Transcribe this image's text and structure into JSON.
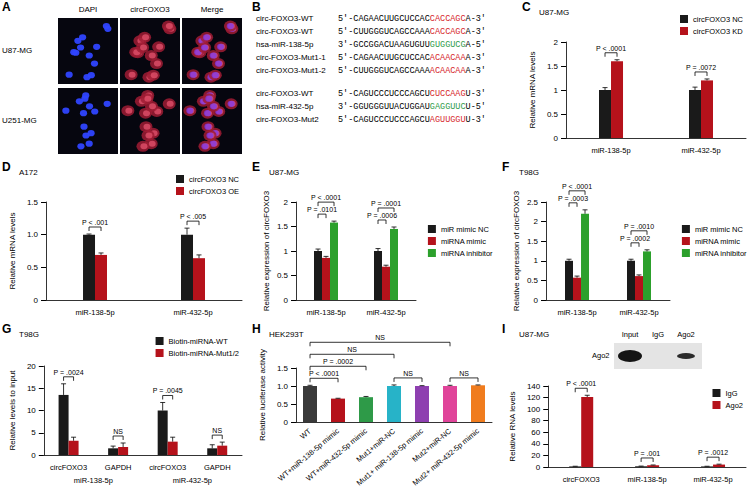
{
  "panel_a": {
    "panel": "A",
    "columns": [
      "DAPI",
      "circFOXO3",
      "Merge"
    ],
    "rows": [
      "U87-MG",
      "U251-MG"
    ]
  },
  "panel_b": {
    "panel": "B",
    "blocks": [
      [
        {
          "name": "circ-FOXO3-WT",
          "parts": [
            {
              "text": "5'-CAGAACUUGCUCCAC"
            },
            {
              "text": "CACCAGC",
              "color": "#d6262c"
            },
            {
              "text": "A-3'"
            }
          ]
        },
        {
          "name": "circ-FOXO3-WT",
          "parts": [
            {
              "text": "5'-CUUGGGUCAGCCAAA"
            },
            {
              "text": "CACCAGC",
              "color": "#d6262c"
            },
            {
              "text": "A-3'"
            }
          ]
        },
        {
          "name": "hsa-miR-138-5p",
          "parts": [
            {
              "text": "3'-GCCGGACUAAGUGUU"
            },
            {
              "text": "GUGGUCG",
              "color": "#2e9a48"
            },
            {
              "text": "A-5'"
            }
          ]
        },
        {
          "name": "circ-FOXO3-Mut1-1",
          "parts": [
            {
              "text": "5'-CAGAACUUGCUCCAC"
            },
            {
              "text": "ACAACAA",
              "color": "#d6262c"
            },
            {
              "text": "A-3'"
            }
          ]
        },
        {
          "name": "circ-FOXO3-Mut1-2",
          "parts": [
            {
              "text": "5'-CUUGGGUCAGCCAAA"
            },
            {
              "text": "ACAACAA",
              "color": "#d6262c"
            },
            {
              "text": "A-3'"
            }
          ]
        }
      ],
      [
        {
          "name": "circ-FOXO3-WT",
          "parts": [
            {
              "text": "5'-CAGUCCCUCCCAGCU"
            },
            {
              "text": "CUCCAAG",
              "color": "#d6262c"
            },
            {
              "text": "U-3'"
            }
          ]
        },
        {
          "name": "hsa-miR-432-5p",
          "parts": [
            {
              "text": "3'-GGUGGGUUACUGGAU"
            },
            {
              "text": "GAGGUUC",
              "color": "#2e9a48"
            },
            {
              "text": "U-5'"
            }
          ]
        },
        {
          "name": "circ-FOXO3-Mut2",
          "parts": [
            {
              "text": "5'-CAGUCCCUCCCAGCU"
            },
            {
              "text": "AGUUGGU",
              "color": "#d6262c"
            },
            {
              "text": "U-3'"
            }
          ]
        }
      ]
    ]
  },
  "panel_i_blot": {
    "lanes": [
      "Input",
      "IgG",
      "Ago2"
    ],
    "band": "Ago2"
  },
  "chart_data": [
    {
      "panel": "C",
      "type": "bar",
      "title": "U87-MG",
      "y_label": "Relative mRNA levels",
      "categories": [
        "miR-138-5p",
        "miR-432-5p"
      ],
      "series": [
        {
          "name": "circFOXO3 NC",
          "color": "#1a1a1a",
          "values": [
            1.0,
            1.0
          ],
          "errors": [
            0.05,
            0.06
          ]
        },
        {
          "name": "circFOXO3 KD",
          "color": "#b5121b",
          "values": [
            1.6,
            1.2
          ],
          "errors": [
            0.03,
            0.03
          ]
        }
      ],
      "ylim": [
        0,
        2
      ],
      "yticks": [
        0,
        0.5,
        1,
        1.5,
        2
      ],
      "grid": false,
      "legend": "upper right",
      "significance": [
        {
          "label": "P < .0001",
          "between": [
            [
              0,
              0
            ],
            [
              0,
              1
            ]
          ]
        },
        {
          "label": "P = .0072",
          "between": [
            [
              1,
              0
            ],
            [
              1,
              1
            ]
          ]
        }
      ]
    },
    {
      "panel": "D",
      "type": "bar",
      "title": "A172",
      "y_label": "Relative mRNA levels",
      "categories": [
        "miR-138-5p",
        "miR-432-5p"
      ],
      "series": [
        {
          "name": "circFOXO3 NC",
          "color": "#1a1a1a",
          "values": [
            1.0,
            1.0
          ],
          "errors": [
            0.01,
            0.1
          ]
        },
        {
          "name": "circFOXO3 OE",
          "color": "#b5121b",
          "values": [
            0.69,
            0.64
          ],
          "errors": [
            0.03,
            0.05
          ]
        }
      ],
      "ylim": [
        0,
        1.5
      ],
      "yticks": [
        0,
        0.5,
        {
          "value": 1,
          "label": "1.0"
        },
        1.5
      ],
      "grid": false,
      "legend": "upper right",
      "significance": [
        {
          "label": "P < .001",
          "between": [
            [
              0,
              0
            ],
            [
              0,
              1
            ]
          ]
        },
        {
          "label": "P < .005",
          "between": [
            [
              1,
              0
            ],
            [
              1,
              1
            ]
          ]
        }
      ]
    },
    {
      "panel": "E",
      "type": "bar",
      "title": "U87-MG",
      "y_label": "Relative expression of circFOXO3",
      "categories": [
        "miR-138-5p",
        "miR-432-5p"
      ],
      "series": [
        {
          "name": "miR mimic NC",
          "color": "#1a1a1a",
          "values": [
            1.0,
            1.0
          ],
          "errors": [
            0.04,
            0.05
          ]
        },
        {
          "name": "miRNA mimic",
          "color": "#b5121b",
          "values": [
            0.86,
            0.68
          ],
          "errors": [
            0.03,
            0.03
          ]
        },
        {
          "name": "miRNA inhibitor",
          "color": "#2ca02c",
          "values": [
            1.58,
            1.45
          ],
          "errors": [
            0.03,
            0.04
          ]
        }
      ],
      "ylim": [
        0,
        2
      ],
      "yticks": [
        0,
        0.5,
        1,
        1.5,
        2
      ],
      "grid": false,
      "legend": "right",
      "significance": [
        {
          "label": "P = .0101",
          "between": [
            [
              0,
              0
            ],
            [
              0,
              1
            ]
          ]
        },
        {
          "label": "P < .0001",
          "between": [
            [
              0,
              0
            ],
            [
              0,
              2
            ]
          ]
        },
        {
          "label": "P = .0006",
          "between": [
            [
              1,
              0
            ],
            [
              1,
              1
            ]
          ]
        },
        {
          "label": "P = .0001",
          "between": [
            [
              1,
              0
            ],
            [
              1,
              2
            ]
          ]
        }
      ]
    },
    {
      "panel": "F",
      "type": "bar",
      "title": "T98G",
      "y_label": "Relative expression of circFOXO3",
      "categories": [
        "miR-138-5p",
        "miR-432-5p"
      ],
      "series": [
        {
          "name": "miR mimic NC",
          "color": "#1a1a1a",
          "values": [
            1.0,
            1.0
          ],
          "errors": [
            0.04,
            0.04
          ]
        },
        {
          "name": "miRNA mimic",
          "color": "#b5121b",
          "values": [
            0.57,
            0.61
          ],
          "errors": [
            0.04,
            0.03
          ]
        },
        {
          "name": "miRNA inhibitor",
          "color": "#2ca02c",
          "values": [
            2.2,
            1.24
          ],
          "errors": [
            0.1,
            0.04
          ]
        }
      ],
      "ylim": [
        0,
        2.5
      ],
      "yticks": [
        0,
        0.5,
        1,
        1.5,
        2,
        2.5
      ],
      "grid": false,
      "legend": "right",
      "significance": [
        {
          "label": "P = .0003",
          "between": [
            [
              0,
              0
            ],
            [
              0,
              1
            ]
          ]
        },
        {
          "label": "P < .0001",
          "between": [
            [
              0,
              0
            ],
            [
              0,
              2
            ]
          ]
        },
        {
          "label": "P = .0002",
          "between": [
            [
              1,
              0
            ],
            [
              1,
              1
            ]
          ]
        },
        {
          "label": "P = .0010",
          "between": [
            [
              1,
              0
            ],
            [
              1,
              2
            ]
          ]
        }
      ]
    },
    {
      "panel": "G",
      "type": "bar",
      "title": "T98G",
      "y_label": "Relative levels to input",
      "categories": [
        "circFOXO3",
        "GAPDH",
        "circFOXO3",
        "GAPDH"
      ],
      "category_groups": [
        "miR-138-5p",
        "miR-432-5p"
      ],
      "series": [
        {
          "name": "Biotin-miRNA-WT",
          "color": "#1a1a1a",
          "values": [
            13.5,
            1.5,
            10,
            1.5
          ],
          "errors": [
            2.5,
            0.5,
            1.8,
            0.8
          ]
        },
        {
          "name": "Biotin-miRNA-Mut1/2",
          "color": "#b5121b",
          "values": [
            3.2,
            1.8,
            3.0,
            2.1
          ],
          "errors": [
            0.8,
            0.9,
            1.0,
            0.8
          ]
        }
      ],
      "ylim": [
        0,
        20
      ],
      "yticks": [
        0,
        5,
        10,
        15,
        20
      ],
      "grid": false,
      "legend": "upper right",
      "significance": [
        {
          "label": "P = .0024",
          "between": [
            [
              0,
              0
            ],
            [
              0,
              1
            ]
          ]
        },
        {
          "label": "NS",
          "between": [
            [
              1,
              0
            ],
            [
              1,
              1
            ]
          ]
        },
        {
          "label": "P = .0045",
          "between": [
            [
              2,
              0
            ],
            [
              2,
              1
            ]
          ]
        },
        {
          "label": "NS",
          "between": [
            [
              3,
              0
            ],
            [
              3,
              1
            ]
          ]
        }
      ]
    },
    {
      "panel": "H",
      "type": "bar",
      "title": "HEK293T",
      "y_label": "Relative luciferase activity",
      "categories": [
        "WT",
        "WT+miR-138-5p mimic",
        "WT+miR-432-5p mimic",
        "Mut1+miR-NC",
        "Mut1+ miR-138-5p mimic",
        "Mut2+miR-NC",
        "Mut2+ miR-432-5p mimic"
      ],
      "series": [
        {
          "values": [
            1.0,
            0.65,
            0.69,
            1.0,
            1.0,
            1.0,
            1.02
          ],
          "errors": [
            0.02,
            0.01,
            0.02,
            0.03,
            0.01,
            0.02,
            0.01
          ],
          "colors": [
            "#3a3a3a",
            "#b5121b",
            "#2e9a48",
            "#27b3c8",
            "#8e3fb0",
            "#e0449a",
            "#f07c1e"
          ]
        }
      ],
      "ylim": [
        0,
        1.5
      ],
      "yticks": [
        0,
        0.5,
        {
          "value": 1,
          "label": "1.0"
        },
        1.5
      ],
      "grid": false,
      "significance": [
        {
          "label": "P < .0001",
          "between": [
            [
              0,
              0
            ],
            [
              1,
              0
            ]
          ]
        },
        {
          "label": "P = .0002",
          "between": [
            [
              0,
              0
            ],
            [
              2,
              0
            ]
          ]
        },
        {
          "label": "NS",
          "between": [
            [
              3,
              0
            ],
            [
              4,
              0
            ]
          ]
        },
        {
          "label": "NS",
          "between": [
            [
              5,
              0
            ],
            [
              6,
              0
            ]
          ]
        },
        {
          "label": "NS",
          "between": [
            [
              0,
              0
            ],
            [
              3,
              0
            ]
          ]
        },
        {
          "label": "NS",
          "between": [
            [
              0,
              0
            ],
            [
              5,
              0
            ]
          ]
        }
      ]
    },
    {
      "panel": "I",
      "type": "bar",
      "title": "U87-MG",
      "y_label": "Relative RNA levels",
      "categories": [
        "circFOXO3",
        "miR-138-5p",
        "miR-432-5p"
      ],
      "series": [
        {
          "name": "IgG",
          "color": "#1a1a1a",
          "values": [
            1,
            1.2,
            1
          ],
          "errors": [
            0.3,
            0.4,
            0.3
          ]
        },
        {
          "name": "Ago2",
          "color": "#b5121b",
          "values": [
            121,
            3,
            4.2
          ],
          "errors": [
            3,
            0.5,
            0.7
          ]
        }
      ],
      "ylim": [
        0,
        140
      ],
      "yticks": [
        0,
        20,
        40,
        60,
        80,
        100,
        120,
        140
      ],
      "grid": false,
      "legend": "upper right",
      "significance": [
        {
          "label": "P < .0001",
          "between": [
            [
              0,
              0
            ],
            [
              0,
              1
            ]
          ]
        },
        {
          "label": "P = .001",
          "between": [
            [
              1,
              0
            ],
            [
              1,
              1
            ]
          ]
        },
        {
          "label": "P = .0012",
          "between": [
            [
              2,
              0
            ],
            [
              2,
              1
            ]
          ]
        }
      ]
    }
  ]
}
